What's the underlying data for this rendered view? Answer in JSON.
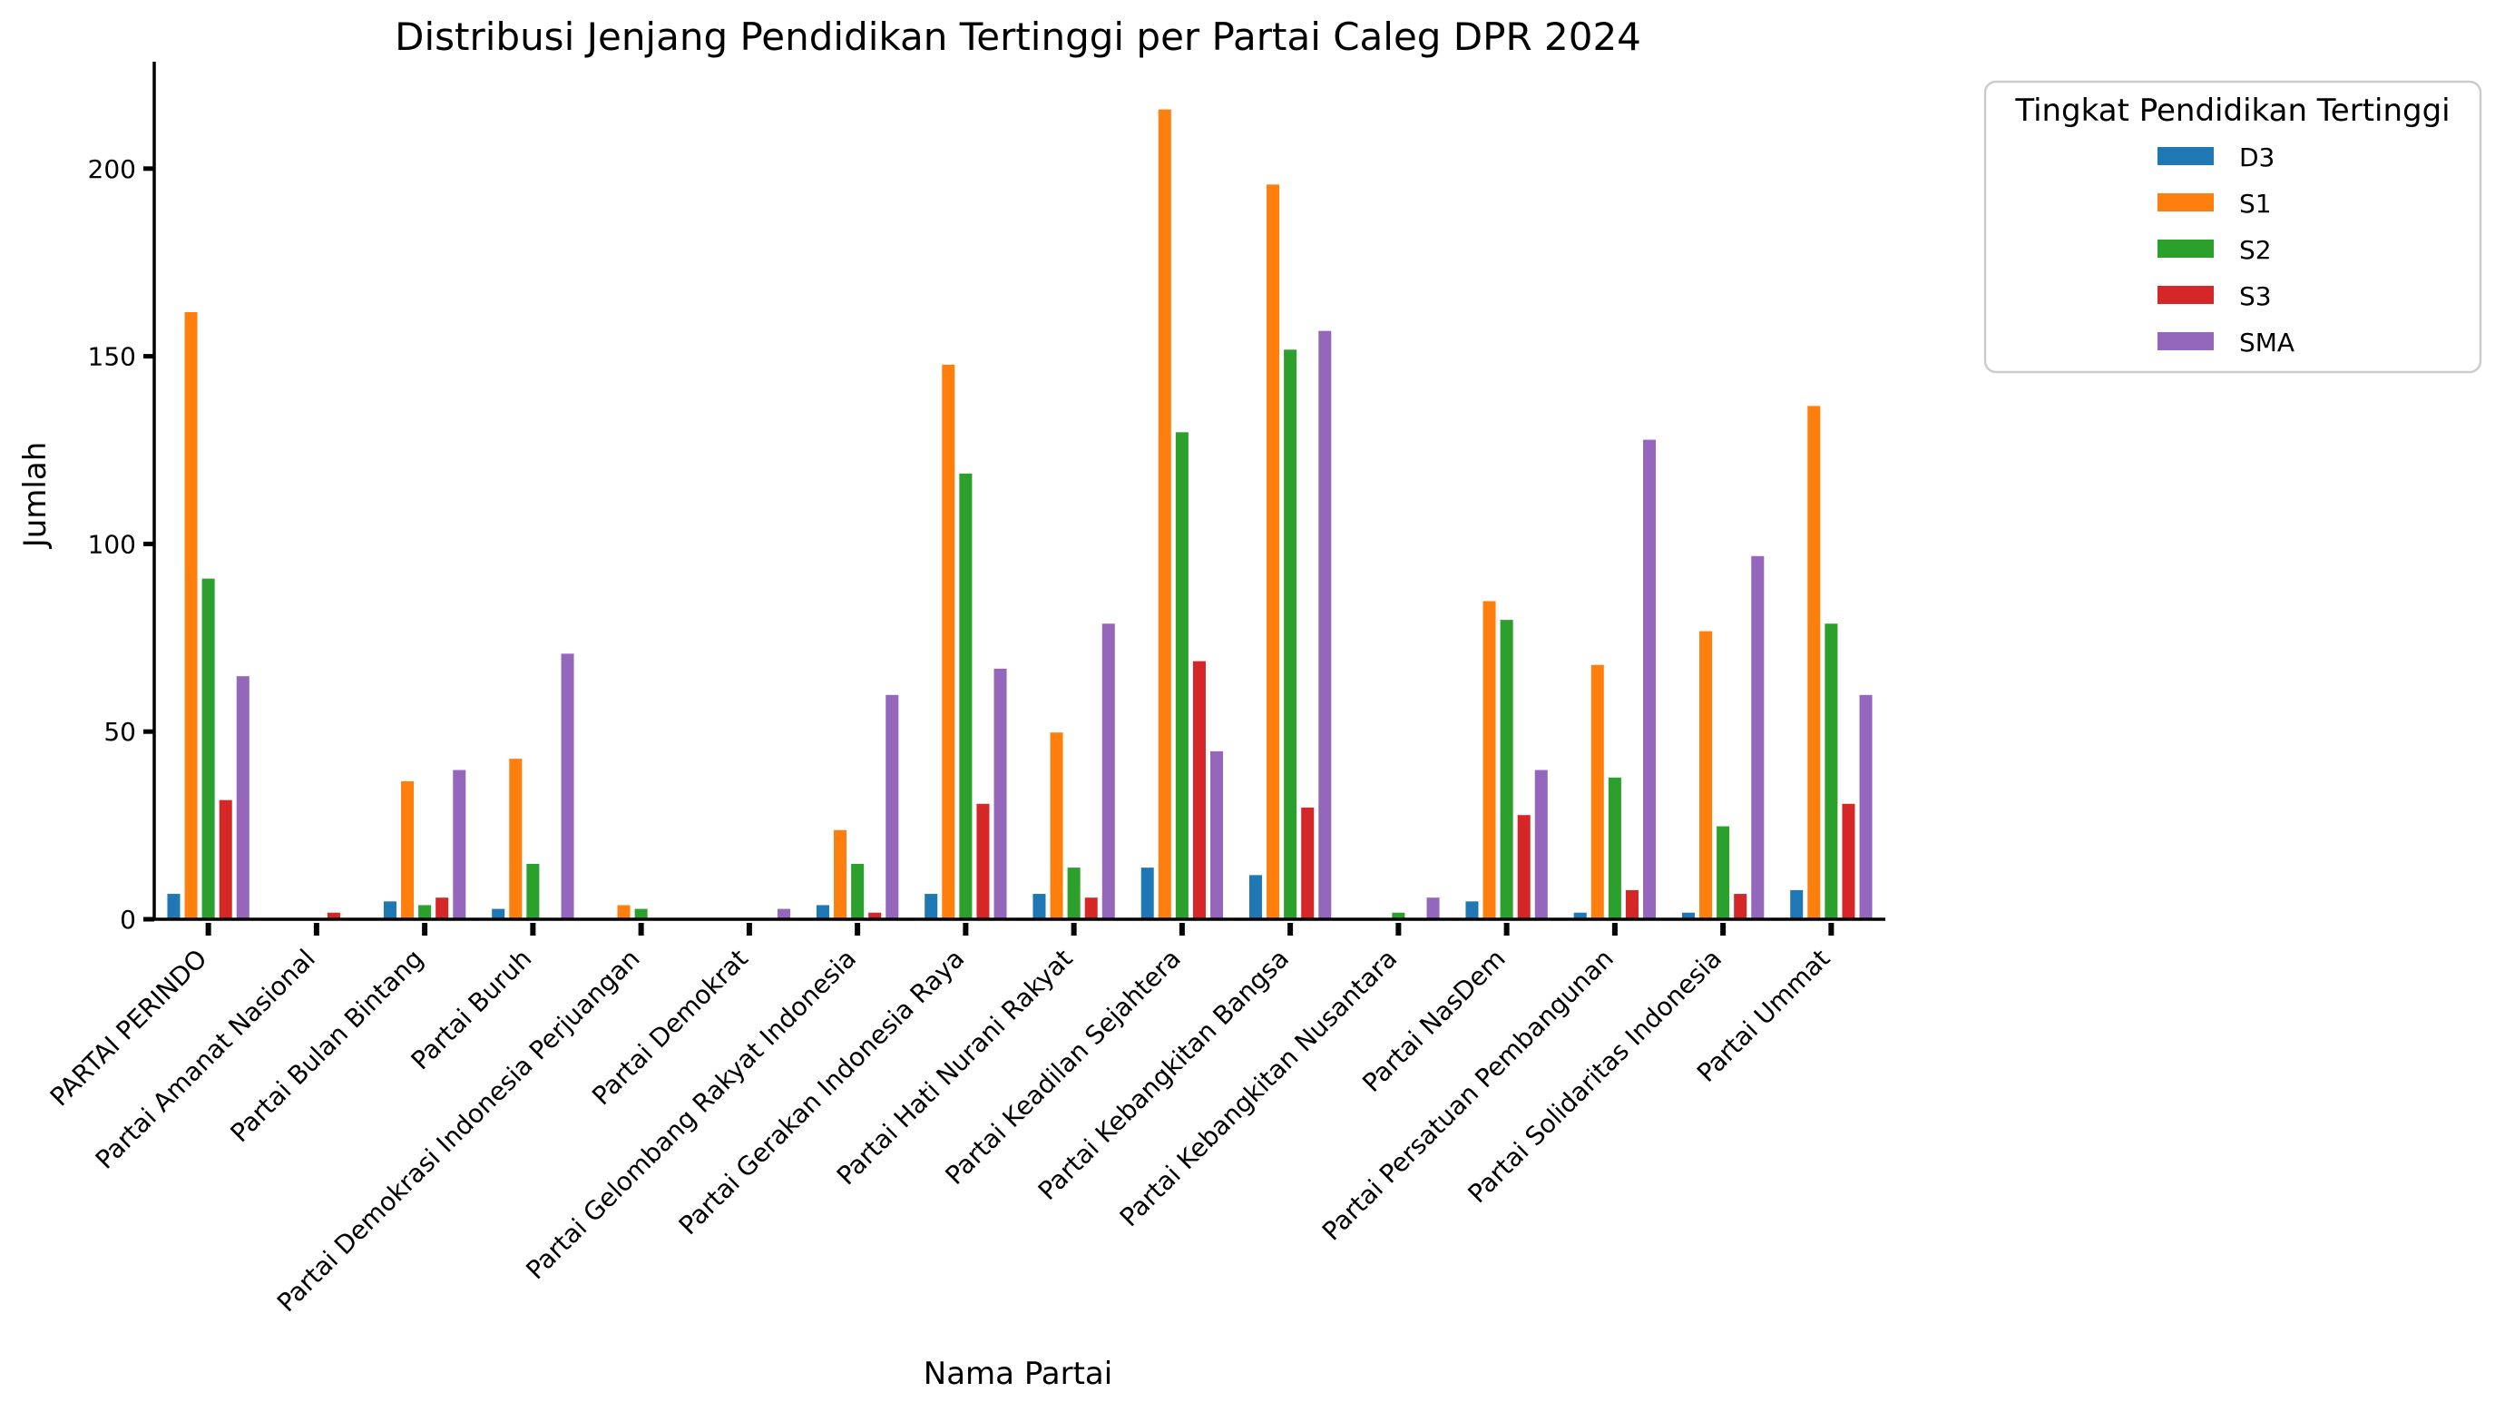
{
  "chart_data": {
    "type": "bar",
    "title": "Distribusi Jenjang Pendidikan Tertinggi per Partai Caleg DPR 2024",
    "xlabel": "Nama Partai",
    "ylabel": "Jumlah",
    "ylim": [
      0,
      228
    ],
    "yticks": [
      0,
      50,
      100,
      150,
      200
    ],
    "grid": false,
    "legend": {
      "title": "Tingkat Pendidikan Tertinggi",
      "placement": "upper-right-outside"
    },
    "categories": [
      "PARTAI PERINDO",
      "Partai Amanat Nasional",
      "Partai Bulan Bintang",
      "Partai Buruh",
      "Partai Demokrasi Indonesia Perjuangan",
      "Partai Demokrat",
      "Partai Gelombang Rakyat Indonesia",
      "Partai Gerakan Indonesia Raya",
      "Partai Hati Nurani Rakyat",
      "Partai Keadilan Sejahtera",
      "Partai Kebangkitan Bangsa",
      "Partai Kebangkitan Nusantara",
      "Partai NasDem",
      "Partai Persatuan Pembangunan",
      "Partai Solidaritas Indonesia",
      "Partai Ummat"
    ],
    "series": [
      {
        "name": "D3",
        "color": "#1f77b4",
        "values": [
          7,
          0,
          5,
          3,
          0,
          0,
          4,
          7,
          7,
          14,
          12,
          0,
          5,
          2,
          2,
          8
        ]
      },
      {
        "name": "S1",
        "color": "#ff7f0e",
        "values": [
          162,
          0,
          37,
          43,
          4,
          0,
          24,
          148,
          50,
          216,
          196,
          0,
          85,
          68,
          77,
          137
        ]
      },
      {
        "name": "S2",
        "color": "#2ca02c",
        "values": [
          91,
          0,
          4,
          15,
          3,
          0,
          15,
          119,
          14,
          130,
          152,
          2,
          80,
          38,
          25,
          79
        ]
      },
      {
        "name": "S3",
        "color": "#d62728",
        "values": [
          32,
          2,
          6,
          0,
          0,
          0,
          2,
          31,
          6,
          69,
          30,
          0,
          28,
          8,
          7,
          31
        ]
      },
      {
        "name": "SMA",
        "color": "#9467bd",
        "values": [
          65,
          0,
          40,
          71,
          0,
          3,
          60,
          67,
          79,
          45,
          157,
          6,
          40,
          128,
          97,
          60
        ]
      }
    ]
  }
}
